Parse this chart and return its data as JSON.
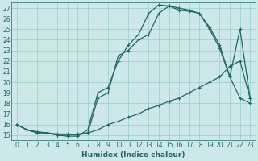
{
  "xlabel": "Humidex (Indice chaleur)",
  "bg_color": "#cce8e8",
  "line_color": "#226666",
  "grid_color": "#99cccc",
  "xlim": [
    -0.5,
    23.5
  ],
  "ylim": [
    14.5,
    27.5
  ],
  "xticks": [
    0,
    1,
    2,
    3,
    4,
    5,
    6,
    7,
    8,
    9,
    10,
    11,
    12,
    13,
    14,
    15,
    16,
    17,
    18,
    19,
    20,
    21,
    22,
    23
  ],
  "yticks": [
    15,
    16,
    17,
    18,
    19,
    20,
    21,
    22,
    23,
    24,
    25,
    26,
    27
  ],
  "line1_x": [
    0,
    1,
    2,
    3,
    4,
    5,
    6,
    7,
    8,
    9,
    10,
    11,
    12,
    13,
    14,
    15,
    16,
    17,
    18,
    19,
    20,
    21,
    22,
    23
  ],
  "line1_y": [
    16.0,
    15.5,
    15.3,
    15.2,
    15.1,
    15.1,
    15.0,
    15.2,
    15.5,
    16.0,
    16.3,
    16.7,
    17.0,
    17.5,
    17.8,
    18.2,
    18.5,
    19.0,
    19.5,
    20.0,
    20.5,
    21.5,
    22.0,
    18.5
  ],
  "line2_x": [
    0,
    1,
    2,
    3,
    4,
    5,
    6,
    7,
    8,
    9,
    10,
    11,
    12,
    13,
    14,
    15,
    16,
    17,
    18,
    19,
    20,
    21,
    22,
    23
  ],
  "line2_y": [
    16.0,
    15.5,
    15.3,
    15.2,
    15.0,
    15.0,
    15.1,
    15.2,
    18.5,
    19.0,
    22.5,
    23.0,
    24.0,
    24.5,
    26.5,
    27.2,
    26.8,
    26.7,
    26.5,
    25.2,
    23.5,
    20.5,
    25.0,
    18.5
  ],
  "line3_x": [
    0,
    1,
    2,
    3,
    4,
    5,
    6,
    7,
    8,
    9,
    10,
    11,
    12,
    13,
    14,
    15,
    16,
    17,
    18,
    19,
    20,
    21,
    22,
    23
  ],
  "line3_y": [
    16.0,
    15.5,
    15.2,
    15.2,
    15.0,
    14.9,
    14.9,
    15.5,
    19.0,
    19.5,
    22.0,
    23.5,
    24.5,
    26.5,
    27.3,
    27.2,
    27.0,
    26.8,
    26.5,
    25.0,
    23.2,
    20.5,
    18.5,
    18.0
  ]
}
